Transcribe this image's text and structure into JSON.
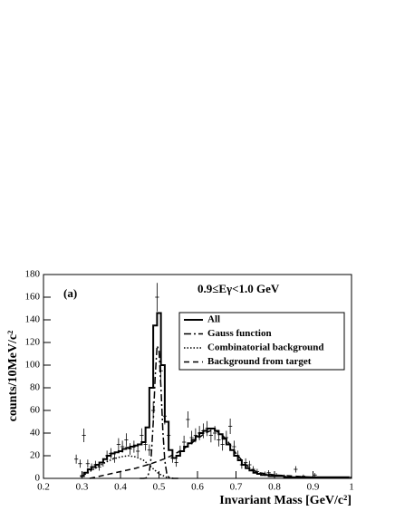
{
  "chart_data": {
    "type": "line",
    "xlabel": "Invariant Mass [GeV/c²]",
    "ylabel": "counts/10MeV/c²",
    "panel_label": "(a)",
    "annotation": "0.9≤Eγ<1.0 GeV",
    "xlim": [
      0.2,
      1
    ],
    "ylim": [
      0,
      180
    ],
    "xticks": [
      0.2,
      0.3,
      0.4,
      0.5,
      0.6,
      0.7,
      0.8,
      0.9,
      1
    ],
    "yticks": [
      0,
      20,
      40,
      60,
      80,
      100,
      120,
      140,
      160,
      180
    ],
    "series": [
      {
        "name": "All",
        "color": "#000000",
        "line_style": "solid",
        "step": true,
        "x": [
          0.3,
          0.31,
          0.32,
          0.33,
          0.34,
          0.35,
          0.36,
          0.37,
          0.38,
          0.39,
          0.4,
          0.41,
          0.42,
          0.43,
          0.44,
          0.45,
          0.46,
          0.47,
          0.48,
          0.49,
          0.5,
          0.51,
          0.52,
          0.53,
          0.54,
          0.55,
          0.56,
          0.57,
          0.58,
          0.59,
          0.6,
          0.61,
          0.62,
          0.63,
          0.64,
          0.65,
          0.66,
          0.67,
          0.68,
          0.69,
          0.7,
          0.71,
          0.72,
          0.73,
          0.74,
          0.75,
          0.76,
          0.77,
          0.78,
          0.79,
          0.8,
          0.81,
          0.82,
          0.83,
          0.84,
          0.85,
          0.86,
          0.87,
          0.88,
          0.89,
          0.9,
          0.91,
          0.92,
          0.93,
          0.94,
          0.95,
          0.96,
          0.97,
          0.98,
          0.99
        ],
        "values": [
          2,
          5,
          8,
          10,
          12,
          14,
          17,
          20,
          22,
          23,
          24,
          26,
          27,
          28,
          29,
          30,
          32,
          45,
          80,
          135,
          146,
          100,
          50,
          25,
          18,
          20,
          24,
          28,
          31,
          34,
          37,
          40,
          42,
          44,
          44,
          42,
          39,
          35,
          30,
          25,
          20,
          16,
          12,
          9,
          7,
          5,
          4,
          3,
          3,
          2,
          2,
          2,
          2,
          1,
          1,
          1,
          1,
          1,
          1,
          1,
          1,
          1,
          1,
          1,
          1,
          1,
          1,
          1,
          1,
          1
        ]
      },
      {
        "name": "Gauss function",
        "color": "#000000",
        "line_style": "dashdot",
        "x": [
          0.45,
          0.455,
          0.46,
          0.465,
          0.47,
          0.475,
          0.48,
          0.485,
          0.49,
          0.495,
          0.5,
          0.505,
          0.51,
          0.515,
          0.52,
          0.525,
          0.53,
          0.535,
          0.54,
          0.545,
          0.55
        ],
        "values": [
          0,
          0,
          0,
          0.2,
          1.3,
          6,
          20,
          49,
          89,
          117,
          113,
          81,
          42,
          16,
          4.6,
          0.9,
          0.1,
          0,
          0,
          0,
          0
        ]
      },
      {
        "name": "Combinatorial background",
        "color": "#000000",
        "line_style": "dotted",
        "x": [
          0.3,
          0.32,
          0.34,
          0.36,
          0.38,
          0.4,
          0.42,
          0.44,
          0.46,
          0.48,
          0.5,
          0.52,
          0.54
        ],
        "values": [
          2,
          6,
          10,
          14,
          17,
          19,
          20,
          19,
          16,
          10,
          4,
          1,
          0
        ]
      },
      {
        "name": "Background from target",
        "color": "#000000",
        "line_style": "dashed",
        "x": [
          0.32,
          0.36,
          0.4,
          0.44,
          0.48,
          0.52,
          0.56,
          0.6,
          0.62,
          0.64,
          0.66,
          0.68,
          0.7,
          0.72,
          0.74,
          0.76,
          0.8,
          0.85,
          0.9,
          0.95,
          1
        ],
        "values": [
          0,
          3,
          6,
          9,
          13,
          18,
          25,
          35,
          40,
          43,
          40,
          32,
          22,
          14,
          8,
          5,
          3,
          2,
          1,
          1,
          1
        ]
      }
    ],
    "points": {
      "color": "#000000",
      "x": [
        0.285,
        0.295,
        0.305,
        0.315,
        0.325,
        0.335,
        0.345,
        0.355,
        0.365,
        0.375,
        0.385,
        0.395,
        0.405,
        0.415,
        0.425,
        0.435,
        0.445,
        0.455,
        0.465,
        0.475,
        0.485,
        0.495,
        0.505,
        0.515,
        0.525,
        0.535,
        0.545,
        0.555,
        0.565,
        0.575,
        0.585,
        0.595,
        0.605,
        0.615,
        0.625,
        0.635,
        0.645,
        0.655,
        0.665,
        0.675,
        0.685,
        0.695,
        0.705,
        0.715,
        0.725,
        0.735,
        0.745,
        0.755,
        0.775,
        0.785,
        0.805,
        0.825,
        0.855,
        0.875,
        0.905
      ],
      "values": [
        17,
        13,
        38,
        13,
        10,
        12,
        10,
        14,
        20,
        22,
        18,
        30,
        28,
        34,
        26,
        28,
        24,
        38,
        30,
        25,
        60,
        160,
        95,
        55,
        38,
        18,
        14,
        24,
        32,
        52,
        36,
        38,
        40,
        42,
        44,
        38,
        40,
        34,
        30,
        36,
        46,
        28,
        20,
        12,
        14,
        12,
        8,
        6,
        4,
        5,
        3,
        2,
        8,
        2,
        3
      ],
      "errors": [
        4,
        3.6,
        6,
        3.6,
        3.2,
        3.5,
        3.2,
        3.7,
        4.5,
        4.7,
        4.2,
        5.5,
        5.3,
        5.8,
        5.1,
        5.3,
        4.9,
        6.2,
        5.5,
        5,
        7.7,
        12.6,
        9.7,
        7.4,
        6.2,
        4.2,
        3.7,
        4.9,
        5.7,
        7.2,
        6,
        6.2,
        6.3,
        6.5,
        6.6,
        6.2,
        6.3,
        5.8,
        5.5,
        6,
        6.8,
        5.3,
        4.5,
        3.5,
        3.7,
        3.5,
        2.8,
        2.4,
        2,
        2.2,
        1.7,
        1.4,
        2.8,
        1.4,
        1.7
      ]
    }
  }
}
